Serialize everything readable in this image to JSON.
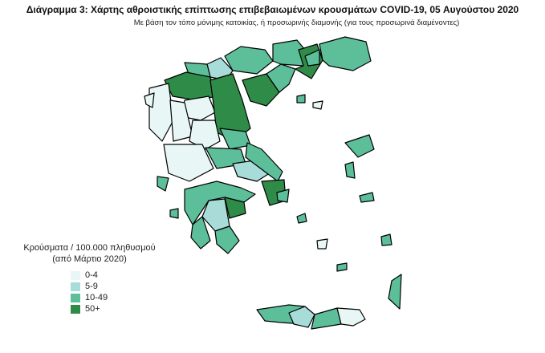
{
  "title": "Διάγραμμα 3: Χάρτης αθροιστικής επίπτωσης επιβεβαιωμένων κρουσμάτων COVID-19, 05 Αυγούστου 2020",
  "subtitle": "Με βάση τον τόπο μόνιμης κατοικίας, ή προσωρινής διαμονής (για τους προσωρινά διαμένοντες)",
  "legend": {
    "title_line1": "Κρούσματα / 100.000 πληθυσμού",
    "title_line2": "(από Μάρτιο 2020)",
    "items": [
      {
        "label": "0-4",
        "color": "#e8f6f6"
      },
      {
        "label": "5-9",
        "color": "#a8dcd8"
      },
      {
        "label": "10-49",
        "color": "#5dbf9a"
      },
      {
        "label": "50+",
        "color": "#2e8b48"
      }
    ]
  }
}
